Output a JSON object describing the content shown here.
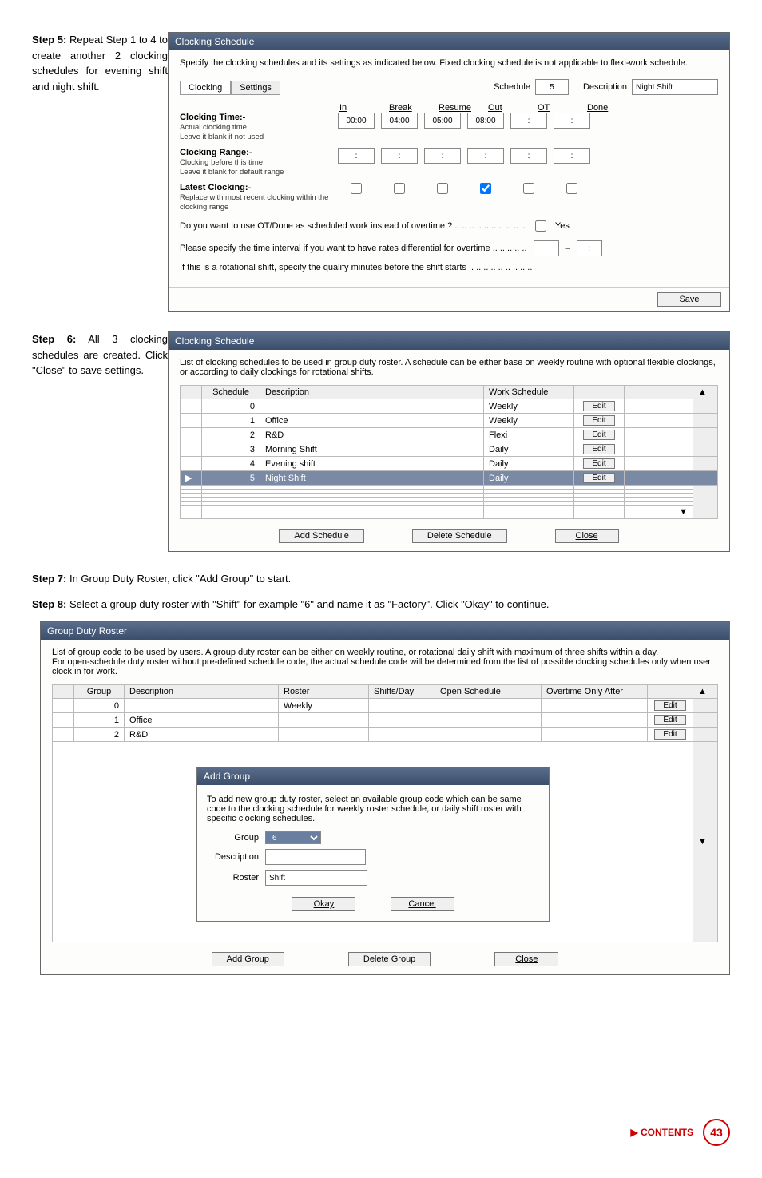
{
  "step5": {
    "heading": "Step 5:",
    "body": " Repeat Step 1 to 4 to create another 2 clocking schedules for evening shift and night shift."
  },
  "step6": {
    "heading": "Step 6:",
    "body": " All 3 clocking schedules are created. Click \"Close\" to save settings."
  },
  "step7": {
    "heading": "Step 7:",
    "body": " In Group Duty Roster, click \"Add Group\" to start."
  },
  "step8": {
    "heading": "Step 8:",
    "body": " Select a group duty roster with \"Shift\" for example \"6\" and name it as \"Factory\". Click \"Okay\" to continue."
  },
  "dlg1": {
    "title": "Clocking Schedule",
    "intro": "Specify the clocking schedules and its settings as indicated below. Fixed clocking schedule is not applicable to flexi-work schedule.",
    "tabs": {
      "t1": "Clocking",
      "t2": "Settings"
    },
    "sched_lbl": "Schedule",
    "sched_val": "5",
    "desc_lbl": "Description",
    "desc_val": "Night Shift",
    "cols": {
      "in": "In",
      "break": "Break",
      "resume": "Resume",
      "out": "Out",
      "ot": "OT",
      "done": "Done"
    },
    "r1": {
      "lbl": "Clocking Time:-",
      "sub": "Actual clocking time\nLeave it blank if not used",
      "in": "00:00",
      "break": "04:00",
      "resume": "05:00",
      "out": "08:00",
      "ot": ":",
      "done": ":"
    },
    "r2": {
      "lbl": "Clocking Range:-",
      "sub": "Clocking before this time\nLeave it blank for default range",
      "in": ":",
      "break": ":",
      "resume": ":",
      "out": ":",
      "ot": ":",
      "done": ":"
    },
    "r3": {
      "lbl": "Latest Clocking:-",
      "sub": "Replace with most recent clocking within the clocking range"
    },
    "q1": "Do you want to use OT/Done as scheduled work instead of overtime ?  .. .. .. .. .. .. .. .. .. ..",
    "q1_yes": "Yes",
    "q2": "Please specify the time interval if you want to have rates differential for overtime  .. .. .. .. ..",
    "q2_sep": "–",
    "q3": "If this is a rotational shift, specify the qualify minutes before the shift starts .. .. .. .. .. .. .. .. ..",
    "save": "Save"
  },
  "dlg2": {
    "title": "Clocking Schedule",
    "intro": "List of clocking schedules to be used in group duty roster. A schedule can be either base on weekly routine with optional flexible clockings, or according to daily clockings for rotational shifts.",
    "cols": {
      "sched": "Schedule",
      "desc": "Description",
      "ws": "Work Schedule"
    },
    "rows": [
      {
        "s": "0",
        "d": "",
        "w": "Weekly",
        "b": "Edit"
      },
      {
        "s": "1",
        "d": "Office",
        "w": "Weekly",
        "b": "Edit"
      },
      {
        "s": "2",
        "d": "R&D",
        "w": "Flexi",
        "b": "Edit"
      },
      {
        "s": "3",
        "d": "Morning Shift",
        "w": "Daily",
        "b": "Edit"
      },
      {
        "s": "4",
        "d": "Evening shift",
        "w": "Daily",
        "b": "Edit"
      },
      {
        "s": "5",
        "d": "Night Shift",
        "w": "Daily",
        "b": "Edit",
        "sel": true
      }
    ],
    "add": "Add Schedule",
    "del": "Delete Schedule",
    "close": "Close"
  },
  "dlg3": {
    "title": "Group Duty Roster",
    "intro": "List of group code to be used by users. A group duty roster can be either on weekly routine, or rotational daily shift with maximum of three shifts within a day.\nFor open-schedule duty roster without pre-defined schedule code, the actual schedule code will be determined from the list of possible clocking schedules only when user clock in for work.",
    "cols": {
      "grp": "Group",
      "desc": "Description",
      "roster": "Roster",
      "spd": "Shifts/Day",
      "open": "Open Schedule",
      "ot": "Overtime Only After"
    },
    "rows": [
      {
        "g": "0",
        "d": "",
        "r": "Weekly",
        "b": "Edit"
      },
      {
        "g": "1",
        "d": "Office",
        "r": "",
        "b": "Edit"
      },
      {
        "g": "2",
        "d": "R&D",
        "r": "",
        "b": "Edit"
      }
    ],
    "inner": {
      "title": "Add Group",
      "intro": "To add new group duty roster, select an available group code which can be same code to the clocking schedule for weekly roster schedule, or daily shift roster with specific clocking schedules.",
      "grp_lbl": "Group",
      "grp_val": "6",
      "desc_lbl": "Description",
      "roster_lbl": "Roster",
      "roster_val": "Shift",
      "okay": "Okay",
      "cancel": "Cancel"
    },
    "add": "Add Group",
    "del": "Delete Group",
    "close": "Close"
  },
  "footer": {
    "contents": "▶ CONTENTS",
    "page": "43"
  }
}
